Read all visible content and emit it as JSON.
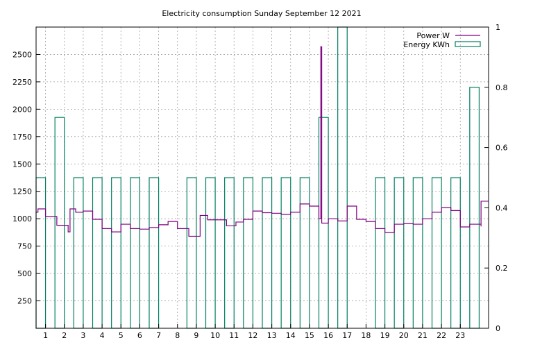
{
  "chart_data": {
    "type": "step",
    "title": "Electricity consumption Sunday September 12 2021",
    "xlabel": "",
    "ylabel": "",
    "xlim": [
      0,
      24
    ],
    "ylim_left": [
      0,
      2750
    ],
    "ylim_right": [
      0,
      1
    ],
    "x_ticks": [
      "1",
      "2",
      "3",
      "4",
      "5",
      "6",
      "7",
      "8",
      "9",
      "10",
      "11",
      "12",
      "13",
      "14",
      "15",
      "16",
      "17",
      "18",
      "19",
      "20",
      "21",
      "22",
      "23"
    ],
    "y_left_ticks": [
      "250",
      "500",
      "750",
      "1000",
      "1250",
      "1500",
      "1750",
      "2000",
      "2250",
      "2500"
    ],
    "y_right_ticks": [
      "0",
      "0.2",
      "0.4",
      "0.6",
      "0.8",
      "1"
    ],
    "grid": true,
    "legend_position": "top-right",
    "series": [
      {
        "name": "Power W",
        "axis": "left",
        "color": "#800080",
        "style": "step",
        "points": [
          [
            0.0,
            1060
          ],
          [
            0.1,
            1090
          ],
          [
            0.5,
            1020
          ],
          [
            1.1,
            940
          ],
          [
            1.7,
            880
          ],
          [
            1.8,
            1090
          ],
          [
            2.1,
            1060
          ],
          [
            2.5,
            1070
          ],
          [
            3.0,
            995
          ],
          [
            3.5,
            910
          ],
          [
            4.0,
            880
          ],
          [
            4.5,
            950
          ],
          [
            5.0,
            910
          ],
          [
            5.5,
            905
          ],
          [
            6.0,
            920
          ],
          [
            6.5,
            945
          ],
          [
            7.0,
            975
          ],
          [
            7.5,
            910
          ],
          [
            8.1,
            840
          ],
          [
            8.7,
            1030
          ],
          [
            9.1,
            990
          ],
          [
            9.6,
            990
          ],
          [
            10.1,
            935
          ],
          [
            10.6,
            970
          ],
          [
            11.0,
            995
          ],
          [
            11.5,
            1070
          ],
          [
            12.0,
            1055
          ],
          [
            12.5,
            1050
          ],
          [
            13.0,
            1040
          ],
          [
            13.5,
            1060
          ],
          [
            14.0,
            1135
          ],
          [
            14.5,
            1115
          ],
          [
            15.0,
            1000
          ],
          [
            15.1,
            2570
          ],
          [
            15.15,
            960
          ],
          [
            15.5,
            1000
          ],
          [
            16.0,
            980
          ],
          [
            16.5,
            1115
          ],
          [
            17.0,
            995
          ],
          [
            17.5,
            975
          ],
          [
            18.0,
            910
          ],
          [
            18.5,
            875
          ],
          [
            19.0,
            950
          ],
          [
            19.5,
            955
          ],
          [
            20.0,
            950
          ],
          [
            20.5,
            1000
          ],
          [
            21.0,
            1060
          ],
          [
            21.5,
            1100
          ],
          [
            22.0,
            1075
          ],
          [
            22.5,
            925
          ],
          [
            23.0,
            950
          ],
          [
            23.6,
            930
          ],
          [
            23.6,
            1160
          ]
        ]
      },
      {
        "name": "Energy KWh",
        "axis": "right",
        "color": "#008060",
        "style": "boxes",
        "box_width": 0.5,
        "points": [
          [
            0.0,
            0.5
          ],
          [
            1.0,
            0.7
          ],
          [
            2.0,
            0.5
          ],
          [
            3.0,
            0.5
          ],
          [
            4.0,
            0.5
          ],
          [
            5.0,
            0.5
          ],
          [
            6.0,
            0.5
          ],
          [
            8.0,
            0.5
          ],
          [
            9.0,
            0.5
          ],
          [
            10.0,
            0.5
          ],
          [
            11.0,
            0.5
          ],
          [
            12.0,
            0.5
          ],
          [
            13.0,
            0.5
          ],
          [
            14.0,
            0.5
          ],
          [
            15.0,
            0.7
          ],
          [
            16.0,
            1.0
          ],
          [
            18.0,
            0.5
          ],
          [
            19.0,
            0.5
          ],
          [
            20.0,
            0.5
          ],
          [
            21.0,
            0.5
          ],
          [
            22.0,
            0.5
          ],
          [
            23.0,
            0.8
          ]
        ]
      }
    ]
  }
}
